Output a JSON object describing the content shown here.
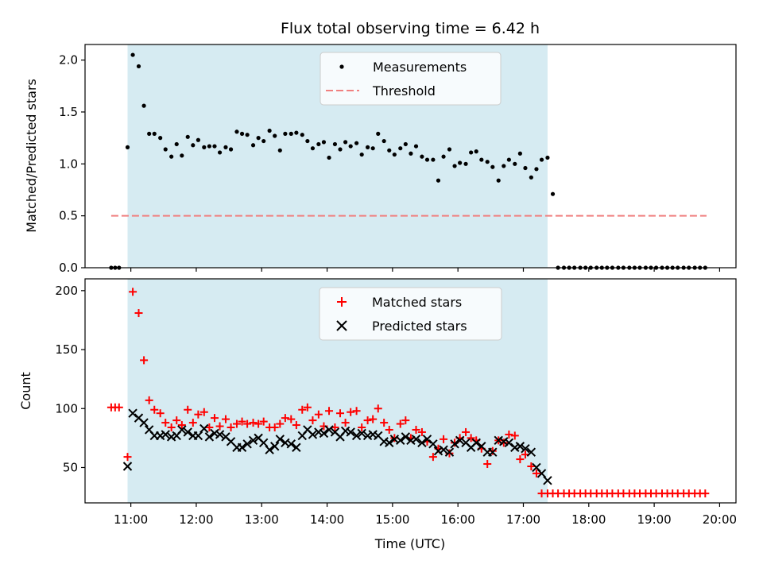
{
  "chart_data": [
    {
      "type": "scatter",
      "title": "Flux total observing time = 6.42 h",
      "xlabel": "",
      "ylabel": "Matched/Predicted stars",
      "ylim": [
        0,
        2.15
      ],
      "xlim_hours": [
        10.3,
        20.25
      ],
      "y_ticks": [
        0,
        0.5,
        1,
        1.5,
        2
      ],
      "y_tick_labels": [
        "0.0",
        "0.5",
        "1.0",
        "1.5",
        "2.0"
      ],
      "shaded_region_hours": [
        10.95,
        17.37
      ],
      "threshold": {
        "name": "Threshold",
        "value": 0.5,
        "x_start": 10.7,
        "x_end": 19.8,
        "color": "#f08080"
      },
      "legend": [
        "Measurements",
        "Threshold"
      ],
      "series": [
        {
          "name": "Measurements",
          "marker": "dot",
          "color": "#000000",
          "x": [
            10.7,
            10.76,
            10.82,
            10.95,
            11.03,
            11.12,
            11.2,
            11.28,
            11.36,
            11.45,
            11.53,
            11.62,
            11.7,
            11.78,
            11.87,
            11.95,
            12.03,
            12.12,
            12.2,
            12.28,
            12.36,
            12.45,
            12.53,
            12.62,
            12.7,
            12.78,
            12.87,
            12.95,
            13.03,
            13.12,
            13.2,
            13.28,
            13.36,
            13.45,
            13.53,
            13.62,
            13.7,
            13.78,
            13.87,
            13.95,
            14.03,
            14.12,
            14.2,
            14.28,
            14.36,
            14.45,
            14.53,
            14.62,
            14.7,
            14.78,
            14.87,
            14.95,
            15.03,
            15.12,
            15.2,
            15.28,
            15.36,
            15.45,
            15.53,
            15.62,
            15.7,
            15.78,
            15.87,
            15.95,
            16.03,
            16.12,
            16.2,
            16.28,
            16.36,
            16.45,
            16.53,
            16.62,
            16.7,
            16.78,
            16.87,
            16.95,
            17.03,
            17.12,
            17.2,
            17.28,
            17.37,
            17.45,
            17.53,
            17.62,
            17.7,
            17.78,
            17.87,
            17.95,
            18.03,
            18.12,
            18.2,
            18.28,
            18.36,
            18.45,
            18.53,
            18.62,
            18.7,
            18.78,
            18.87,
            18.95,
            19.03,
            19.12,
            19.2,
            19.28,
            19.36,
            19.45,
            19.53,
            19.62,
            19.7,
            19.78
          ],
          "y": [
            0,
            0,
            0,
            1.16,
            2.05,
            1.94,
            1.56,
            1.29,
            1.29,
            1.25,
            1.14,
            1.07,
            1.19,
            1.08,
            1.26,
            1.18,
            1.23,
            1.16,
            1.17,
            1.17,
            1.11,
            1.16,
            1.14,
            1.31,
            1.29,
            1.28,
            1.18,
            1.25,
            1.22,
            1.32,
            1.27,
            1.13,
            1.29,
            1.29,
            1.3,
            1.28,
            1.22,
            1.15,
            1.19,
            1.21,
            1.06,
            1.19,
            1.14,
            1.21,
            1.17,
            1.2,
            1.09,
            1.16,
            1.15,
            1.29,
            1.22,
            1.13,
            1.09,
            1.15,
            1.19,
            1.1,
            1.17,
            1.07,
            1.04,
            1.04,
            0.84,
            1.07,
            1.14,
            0.98,
            1.01,
            1.0,
            1.11,
            1.12,
            1.04,
            1.02,
            0.97,
            0.84,
            0.98,
            1.04,
            1.0,
            1.1,
            0.96,
            0.87,
            0.95,
            1.04,
            1.06,
            0.71,
            0,
            0,
            0,
            0,
            0,
            0,
            0,
            0,
            0,
            0,
            0,
            0,
            0,
            0,
            0,
            0,
            0,
            0,
            0,
            0,
            0,
            0,
            0,
            0,
            0,
            0,
            0,
            0
          ]
        }
      ]
    },
    {
      "type": "scatter",
      "title": "",
      "xlabel": "Time (UTC)",
      "ylabel": "Count",
      "ylim": [
        20,
        210
      ],
      "xlim_hours": [
        10.3,
        20.25
      ],
      "y_ticks": [
        50,
        100,
        150,
        200
      ],
      "y_tick_labels": [
        "50",
        "100",
        "150",
        "200"
      ],
      "x_ticks": [
        11,
        12,
        13,
        14,
        15,
        16,
        17,
        18,
        19,
        20
      ],
      "x_tick_labels": [
        "11:00",
        "12:00",
        "13:00",
        "14:00",
        "15:00",
        "16:00",
        "17:00",
        "18:00",
        "19:00",
        "20:00"
      ],
      "shaded_region_hours": [
        10.95,
        17.37
      ],
      "legend": [
        "Matched stars",
        "Predicted stars"
      ],
      "series": [
        {
          "name": "Matched stars",
          "marker": "plus",
          "color": "#ff0000",
          "x": [
            10.7,
            10.76,
            10.82,
            10.95,
            11.03,
            11.12,
            11.2,
            11.28,
            11.36,
            11.45,
            11.53,
            11.62,
            11.7,
            11.78,
            11.87,
            11.95,
            12.03,
            12.12,
            12.2,
            12.28,
            12.36,
            12.45,
            12.53,
            12.62,
            12.7,
            12.78,
            12.87,
            12.95,
            13.03,
            13.12,
            13.2,
            13.28,
            13.36,
            13.45,
            13.53,
            13.62,
            13.7,
            13.78,
            13.87,
            13.95,
            14.03,
            14.12,
            14.2,
            14.28,
            14.36,
            14.45,
            14.53,
            14.62,
            14.7,
            14.78,
            14.87,
            14.95,
            15.03,
            15.12,
            15.2,
            15.28,
            15.36,
            15.45,
            15.53,
            15.62,
            15.7,
            15.78,
            15.87,
            15.95,
            16.03,
            16.12,
            16.2,
            16.28,
            16.36,
            16.45,
            16.53,
            16.62,
            16.7,
            16.78,
            16.87,
            16.95,
            17.03,
            17.12,
            17.2,
            17.28,
            17.37,
            17.45,
            17.53,
            17.62,
            17.7,
            17.78,
            17.87,
            17.95,
            18.03,
            18.12,
            18.2,
            18.28,
            18.36,
            18.45,
            18.53,
            18.62,
            18.7,
            18.78,
            18.87,
            18.95,
            19.03,
            19.12,
            19.2,
            19.28,
            19.36,
            19.45,
            19.53,
            19.62,
            19.7,
            19.78
          ],
          "y": [
            101,
            101,
            101,
            59,
            199,
            181,
            141,
            107,
            99,
            96,
            88,
            84,
            90,
            86,
            99,
            88,
            95,
            97,
            84,
            92,
            85,
            91,
            84,
            87,
            89,
            87,
            88,
            87,
            89,
            84,
            84,
            87,
            92,
            91,
            86,
            99,
            101,
            90,
            95,
            85,
            98,
            84,
            96,
            88,
            97,
            98,
            84,
            90,
            91,
            100,
            88,
            82,
            75,
            87,
            90,
            75,
            82,
            80,
            72,
            59,
            66,
            74,
            62,
            71,
            75,
            80,
            75,
            73,
            66,
            53,
            64,
            73,
            71,
            78,
            77,
            57,
            61,
            51,
            45,
            28,
            28,
            28,
            28,
            28,
            28,
            28,
            28,
            28,
            28,
            28,
            28,
            28,
            28,
            28,
            28,
            28,
            28,
            28,
            28,
            28,
            28,
            28,
            28,
            28,
            28,
            28,
            28,
            28,
            28,
            28
          ]
        },
        {
          "name": "Predicted stars",
          "marker": "x",
          "color": "#000000",
          "x": [
            10.95,
            11.03,
            11.12,
            11.2,
            11.28,
            11.36,
            11.45,
            11.53,
            11.62,
            11.7,
            11.78,
            11.87,
            11.95,
            12.03,
            12.12,
            12.2,
            12.28,
            12.36,
            12.45,
            12.53,
            12.62,
            12.7,
            12.78,
            12.87,
            12.95,
            13.03,
            13.12,
            13.2,
            13.28,
            13.36,
            13.45,
            13.53,
            13.62,
            13.7,
            13.78,
            13.87,
            13.95,
            14.03,
            14.12,
            14.2,
            14.28,
            14.36,
            14.45,
            14.53,
            14.62,
            14.7,
            14.78,
            14.87,
            14.95,
            15.03,
            15.12,
            15.2,
            15.28,
            15.36,
            15.45,
            15.53,
            15.62,
            15.7,
            15.78,
            15.87,
            15.95,
            16.03,
            16.12,
            16.2,
            16.28,
            16.36,
            16.45,
            16.53,
            16.62,
            16.7,
            16.78,
            16.87,
            16.95,
            17.03,
            17.12,
            17.2,
            17.28,
            17.37
          ],
          "y": [
            51,
            96,
            92,
            88,
            82,
            77,
            77,
            78,
            76,
            77,
            82,
            80,
            77,
            77,
            83,
            76,
            79,
            78,
            76,
            72,
            67,
            67,
            70,
            73,
            75,
            71,
            65,
            68,
            74,
            71,
            70,
            67,
            77,
            82,
            78,
            80,
            79,
            82,
            80,
            76,
            81,
            80,
            77,
            79,
            77,
            78,
            77,
            72,
            71,
            74,
            73,
            76,
            73,
            74,
            71,
            74,
            70,
            64,
            65,
            63,
            70,
            73,
            71,
            67,
            71,
            68,
            63,
            63,
            73,
            72,
            71,
            67,
            68,
            66,
            63,
            50,
            45,
            39
          ]
        }
      ]
    }
  ]
}
